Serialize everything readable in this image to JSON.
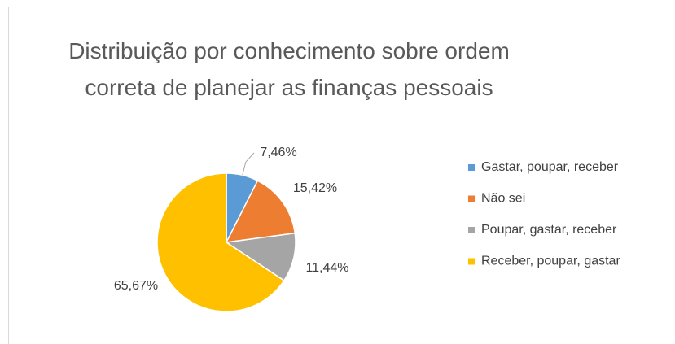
{
  "chart_data": {
    "type": "pie",
    "title": "Distribuição por conhecimento sobre ordem correta de planejar as finanças pessoais",
    "categories": [
      "Gastar, poupar, receber",
      "Não sei",
      "Poupar, gastar, receber",
      "Receber, poupar, gastar"
    ],
    "values": [
      7.46,
      15.42,
      11.44,
      65.67
    ],
    "value_labels": [
      "7,46%",
      "15,42%",
      "11,44%",
      "65,67%"
    ],
    "colors": [
      "#5b9bd5",
      "#ed7d31",
      "#a5a5a5",
      "#ffc000"
    ],
    "legend": "right"
  }
}
